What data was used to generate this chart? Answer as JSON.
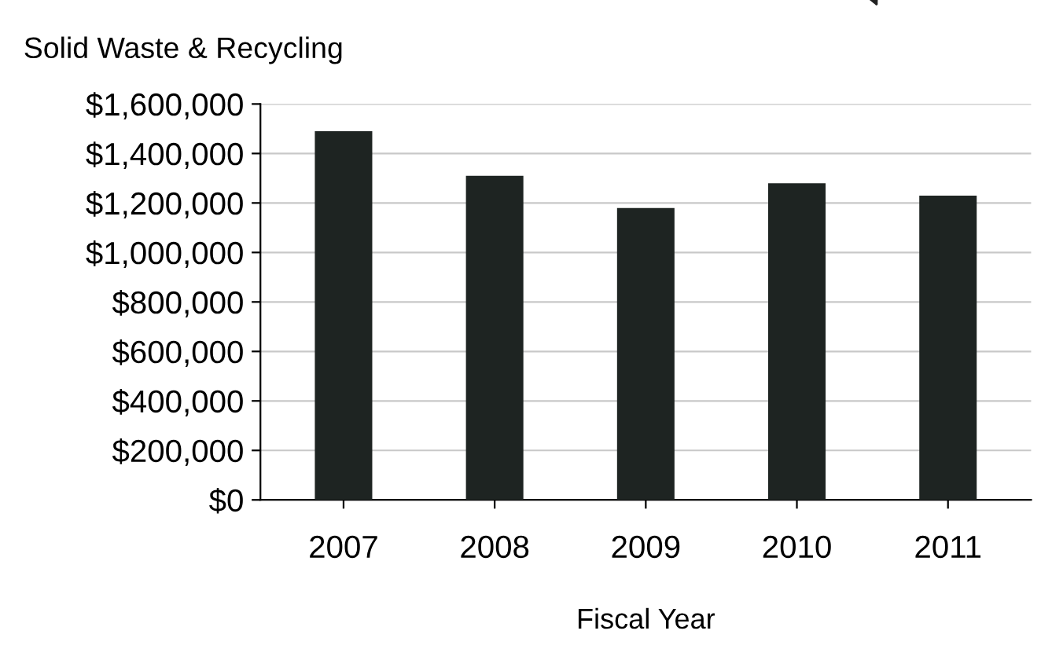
{
  "chart_data": {
    "type": "bar",
    "title": "Solid Waste & Recycling",
    "xlabel": "Fiscal Year",
    "categories": [
      "2007",
      "2008",
      "2009",
      "2010",
      "2011"
    ],
    "values": [
      1490000,
      1310000,
      1180000,
      1280000,
      1230000
    ],
    "color": "#1e2422",
    "ylim": [
      0,
      1600000
    ],
    "yticks": [
      {
        "value": 0,
        "label": "$0"
      },
      {
        "value": 200000,
        "label": "$200,000"
      },
      {
        "value": 400000,
        "label": "$400,000"
      },
      {
        "value": 600000,
        "label": "$600,000"
      },
      {
        "value": 800000,
        "label": "$800,000"
      },
      {
        "value": 1000000,
        "label": "$1,000,000"
      },
      {
        "value": 1200000,
        "label": "$1,200,000"
      },
      {
        "value": 1400000,
        "label": "$1,400,000"
      },
      {
        "value": 1600000,
        "label": "$1,600,000"
      }
    ],
    "grid": "y",
    "legend": false
  }
}
